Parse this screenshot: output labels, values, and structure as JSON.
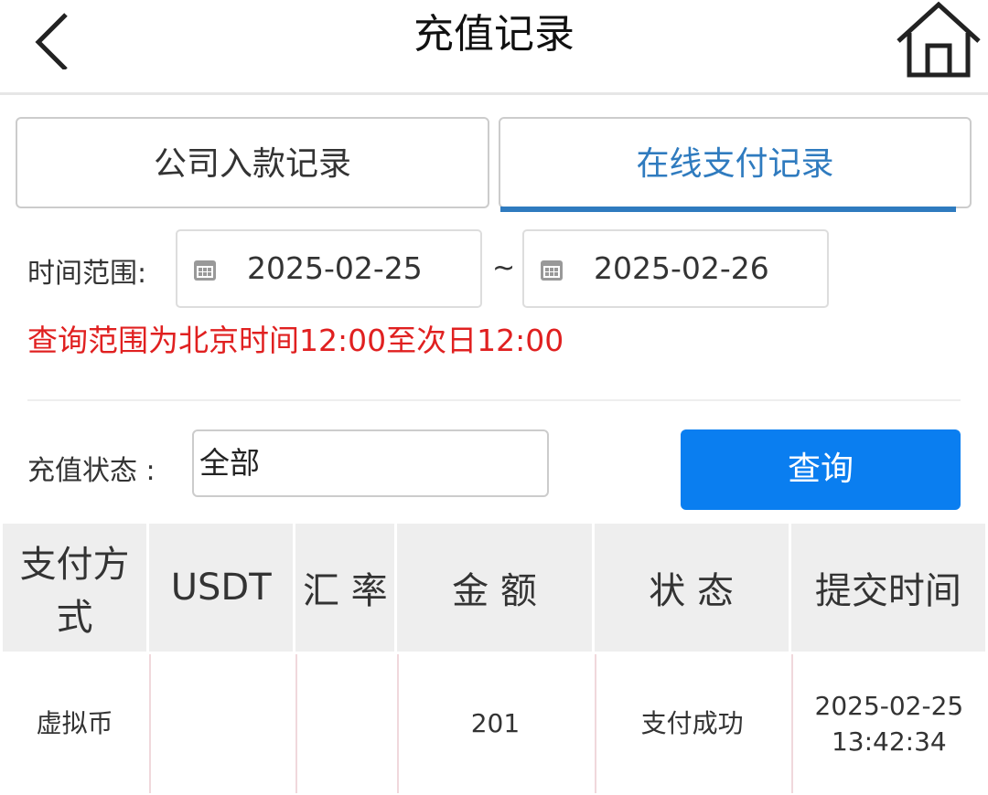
{
  "header": {
    "title": "充值记录",
    "back_icon": "chevron-left-icon",
    "home_icon": "home-icon"
  },
  "tabs": [
    {
      "label": "公司入款记录",
      "active": false
    },
    {
      "label": "在线支付记录",
      "active": true
    }
  ],
  "accent_color": "#2f7bbf",
  "filters": {
    "time_range_label": "时间范围:",
    "start_date": "2025-02-25",
    "separator": "~",
    "end_date": "2025-02-26",
    "hint": "查询范围为北京时间12:00至次日12:00",
    "status_label": "充值状态 :",
    "status_value": "全部",
    "query_button": "查询"
  },
  "table": {
    "headers": [
      "支付方式",
      "USDT",
      "汇 率",
      "金 额",
      "状 态",
      "提交时间"
    ],
    "rows": [
      {
        "method": "虚拟币",
        "usdt": "",
        "rate": "",
        "amount": "201",
        "status": "支付成功",
        "time_date": "2025-02-25",
        "time_clock": "13:42:34"
      }
    ]
  }
}
